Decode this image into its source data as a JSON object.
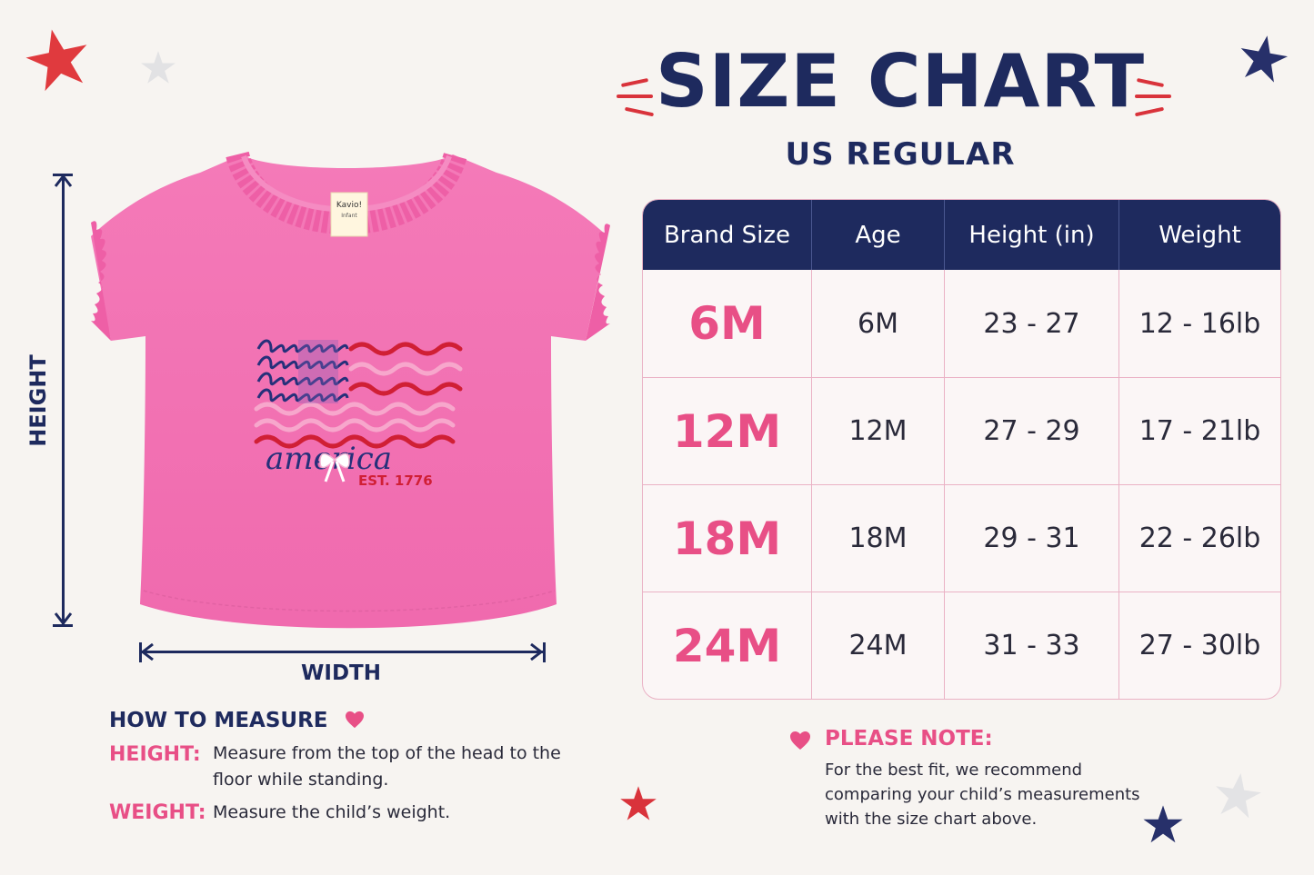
{
  "title": "SIZE CHART",
  "subtitle": "US REGULAR",
  "table": {
    "headers": [
      "Brand Size",
      "Age",
      "Height (in)",
      "Weight"
    ],
    "rows": [
      {
        "brand": "6M",
        "age": "6M",
        "height": "23 - 27",
        "weight": "12 - 16lb"
      },
      {
        "brand": "12M",
        "age": "12M",
        "height": "27 - 29",
        "weight": "17 - 21lb"
      },
      {
        "brand": "18M",
        "age": "18M",
        "height": "29 - 31",
        "weight": "22 - 26lb"
      },
      {
        "brand": "24M",
        "age": "24M",
        "height": "31 - 33",
        "weight": "27 - 30lb"
      }
    ]
  },
  "garment": {
    "tag_brand": "Kavio!",
    "tag_line": "Infant",
    "print_word": "america",
    "print_est": "EST. 1776",
    "height_label": "HEIGHT",
    "width_label": "WIDTH"
  },
  "how_to_measure": {
    "title": "HOW TO MEASURE",
    "items": [
      {
        "key": "HEIGHT:",
        "text_line1": "Measure from the top of the head to the",
        "text_line2": "floor while standing."
      },
      {
        "key": "WEIGHT:",
        "text_line1": "Measure the child’s weight.",
        "text_line2": ""
      }
    ]
  },
  "note": {
    "title": "PLEASE NOTE:",
    "text": "For the best fit, we recommend comparing your child’s measurements with the size chart above."
  },
  "colors": {
    "navy": "#1e2a5e",
    "pink_accent": "#e84f86",
    "shirt_pink": "#f47ab8",
    "red": "#d9333b",
    "background": "#f7f4f1"
  }
}
